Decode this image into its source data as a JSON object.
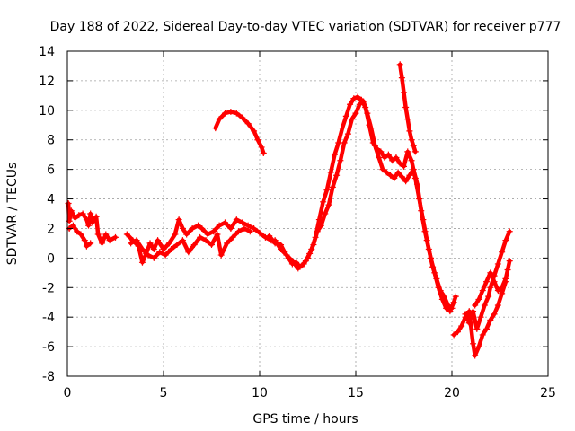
{
  "chart_data": {
    "type": "scatter",
    "title": "Day 188 of 2022, Sidereal Day-to-day VTEC variation (SDTVAR) for receiver p777",
    "xlabel": "GPS time / hours",
    "ylabel": "SDTVAR / TECUs",
    "xlim": [
      0,
      25
    ],
    "ylim": [
      -8,
      14
    ],
    "xticks": [
      0,
      5,
      10,
      15,
      20,
      25
    ],
    "yticks": [
      -8,
      -6,
      -4,
      -2,
      0,
      2,
      4,
      6,
      8,
      10,
      12,
      14
    ],
    "grid": true,
    "color": "#ff0000",
    "marker": "plus",
    "series": [
      {
        "name": "sdtvar-main-a",
        "points": [
          [
            0.05,
            3.7
          ],
          [
            0.1,
            2.5
          ],
          [
            0.2,
            3.2
          ],
          [
            0.4,
            2.7
          ],
          [
            0.6,
            2.9
          ],
          [
            0.8,
            3.0
          ],
          [
            1.0,
            2.6
          ],
          [
            1.1,
            2.2
          ],
          [
            1.2,
            3.0
          ],
          [
            1.3,
            2.4
          ],
          [
            1.5,
            2.8
          ],
          [
            1.6,
            1.6
          ],
          [
            1.8,
            1.0
          ],
          [
            2.0,
            1.6
          ],
          [
            2.2,
            1.2
          ],
          [
            2.5,
            1.4
          ]
        ]
      },
      {
        "name": "sdtvar-main-b",
        "points": [
          [
            0.1,
            2.0
          ],
          [
            0.3,
            2.2
          ],
          [
            0.5,
            1.8
          ],
          [
            0.7,
            1.6
          ],
          [
            0.9,
            1.2
          ],
          [
            1.0,
            0.8
          ],
          [
            1.2,
            1.0
          ]
        ]
      },
      {
        "name": "sdtvar-main-c",
        "points": [
          [
            3.1,
            1.6
          ],
          [
            3.4,
            1.2
          ],
          [
            3.7,
            0.8
          ],
          [
            3.9,
            -0.3
          ],
          [
            4.1,
            0.3
          ],
          [
            4.3,
            1.0
          ],
          [
            4.5,
            0.6
          ],
          [
            4.7,
            1.2
          ],
          [
            5.0,
            0.6
          ],
          [
            5.3,
            1.0
          ],
          [
            5.6,
            1.6
          ],
          [
            5.8,
            2.6
          ],
          [
            6.0,
            2.0
          ],
          [
            6.2,
            1.6
          ],
          [
            6.5,
            2.0
          ],
          [
            6.8,
            2.2
          ],
          [
            7.0,
            2.0
          ],
          [
            7.3,
            1.6
          ],
          [
            7.6,
            1.8
          ],
          [
            7.9,
            2.2
          ],
          [
            8.2,
            2.4
          ],
          [
            8.5,
            2.0
          ],
          [
            8.8,
            2.6
          ],
          [
            9.1,
            2.4
          ],
          [
            9.4,
            2.2
          ],
          [
            9.7,
            2.0
          ],
          [
            10.0,
            1.7
          ],
          [
            10.3,
            1.4
          ],
          [
            10.6,
            1.2
          ]
        ]
      },
      {
        "name": "sdtvar-main-d",
        "points": [
          [
            3.3,
            1.0
          ],
          [
            3.6,
            1.2
          ],
          [
            3.9,
            0.6
          ],
          [
            4.2,
            0.2
          ],
          [
            4.5,
            0.0
          ],
          [
            4.8,
            0.4
          ],
          [
            5.1,
            0.2
          ],
          [
            5.4,
            0.6
          ],
          [
            5.7,
            0.9
          ],
          [
            6.0,
            1.2
          ],
          [
            6.3,
            0.4
          ],
          [
            6.6,
            0.9
          ],
          [
            6.9,
            1.4
          ],
          [
            7.2,
            1.2
          ],
          [
            7.5,
            0.9
          ],
          [
            7.8,
            1.6
          ],
          [
            8.0,
            0.2
          ],
          [
            8.3,
            1.0
          ],
          [
            8.6,
            1.4
          ],
          [
            8.9,
            1.8
          ],
          [
            9.2,
            2.0
          ],
          [
            9.5,
            1.8
          ]
        ]
      },
      {
        "name": "sdtvar-arc",
        "points": [
          [
            7.7,
            8.8
          ],
          [
            7.9,
            9.4
          ],
          [
            8.2,
            9.8
          ],
          [
            8.5,
            9.9
          ],
          [
            8.8,
            9.8
          ],
          [
            9.1,
            9.5
          ],
          [
            9.4,
            9.1
          ],
          [
            9.7,
            8.6
          ],
          [
            9.9,
            8.0
          ],
          [
            10.1,
            7.5
          ],
          [
            10.2,
            7.1
          ]
        ]
      },
      {
        "name": "sdtvar-main-e",
        "points": [
          [
            10.5,
            1.5
          ],
          [
            10.8,
            1.0
          ],
          [
            11.1,
            0.9
          ],
          [
            11.3,
            0.4
          ],
          [
            11.5,
            0.0
          ],
          [
            11.7,
            -0.4
          ],
          [
            11.9,
            -0.3
          ],
          [
            12.1,
            -0.6
          ],
          [
            12.3,
            -0.4
          ],
          [
            12.5,
            0.0
          ],
          [
            12.7,
            0.6
          ],
          [
            12.9,
            1.4
          ],
          [
            13.1,
            2.6
          ],
          [
            13.3,
            3.8
          ],
          [
            13.5,
            4.6
          ],
          [
            13.7,
            5.8
          ],
          [
            13.9,
            7.0
          ],
          [
            14.1,
            7.8
          ],
          [
            14.3,
            8.8
          ],
          [
            14.5,
            9.6
          ],
          [
            14.7,
            10.4
          ],
          [
            14.9,
            10.8
          ],
          [
            15.1,
            10.9
          ],
          [
            15.3,
            10.7
          ],
          [
            15.5,
            10.2
          ],
          [
            15.7,
            9.0
          ],
          [
            15.9,
            7.8
          ],
          [
            16.1,
            7.4
          ],
          [
            16.3,
            7.2
          ],
          [
            16.5,
            6.8
          ],
          [
            16.7,
            7.0
          ],
          [
            16.9,
            6.6
          ],
          [
            17.1,
            6.8
          ],
          [
            17.3,
            6.4
          ],
          [
            17.5,
            6.2
          ],
          [
            17.7,
            7.2
          ],
          [
            17.9,
            6.6
          ],
          [
            18.1,
            5.4
          ],
          [
            18.3,
            4.0
          ],
          [
            18.5,
            2.6
          ],
          [
            18.7,
            1.2
          ],
          [
            18.9,
            0.0
          ],
          [
            19.1,
            -1.0
          ],
          [
            19.3,
            -2.0
          ],
          [
            19.5,
            -2.8
          ],
          [
            19.7,
            -3.4
          ],
          [
            19.9,
            -3.6
          ],
          [
            20.1,
            -3.0
          ],
          [
            20.2,
            -2.6
          ]
        ]
      },
      {
        "name": "sdtvar-main-f",
        "points": [
          [
            10.8,
            1.2
          ],
          [
            11.1,
            0.6
          ],
          [
            11.4,
            0.2
          ],
          [
            11.7,
            -0.2
          ],
          [
            12.0,
            -0.7
          ],
          [
            12.2,
            -0.5
          ],
          [
            12.4,
            -0.2
          ],
          [
            12.6,
            0.3
          ],
          [
            12.8,
            0.9
          ],
          [
            13.0,
            1.8
          ],
          [
            13.2,
            2.2
          ],
          [
            13.4,
            3.0
          ],
          [
            13.6,
            3.6
          ],
          [
            13.8,
            4.8
          ],
          [
            14.0,
            5.6
          ],
          [
            14.2,
            6.6
          ],
          [
            14.4,
            7.8
          ],
          [
            14.6,
            8.4
          ],
          [
            14.8,
            9.4
          ],
          [
            15.0,
            9.8
          ],
          [
            15.2,
            10.4
          ],
          [
            15.4,
            10.6
          ],
          [
            15.6,
            9.8
          ],
          [
            15.8,
            8.8
          ],
          [
            16.0,
            7.6
          ],
          [
            16.2,
            6.8
          ],
          [
            16.4,
            6.0
          ],
          [
            16.6,
            5.8
          ],
          [
            16.8,
            5.6
          ],
          [
            17.0,
            5.4
          ],
          [
            17.2,
            5.8
          ],
          [
            17.4,
            5.5
          ],
          [
            17.6,
            5.2
          ],
          [
            17.8,
            5.6
          ],
          [
            18.0,
            6.0
          ],
          [
            18.2,
            5.0
          ],
          [
            18.4,
            3.2
          ],
          [
            18.6,
            1.8
          ],
          [
            18.8,
            0.6
          ],
          [
            19.0,
            -0.6
          ],
          [
            19.2,
            -1.4
          ],
          [
            19.4,
            -2.2
          ],
          [
            19.6,
            -2.6
          ],
          [
            19.8,
            -3.2
          ],
          [
            20.0,
            -3.4
          ]
        ]
      },
      {
        "name": "sdtvar-spike",
        "points": [
          [
            17.3,
            13.1
          ],
          [
            17.4,
            12.2
          ],
          [
            17.5,
            11.2
          ],
          [
            17.6,
            10.2
          ],
          [
            17.7,
            9.4
          ],
          [
            17.8,
            8.6
          ],
          [
            17.9,
            8.0
          ],
          [
            18.0,
            7.6
          ],
          [
            18.1,
            7.2
          ]
        ]
      },
      {
        "name": "sdtvar-tail-a",
        "points": [
          [
            20.1,
            -5.2
          ],
          [
            20.3,
            -5.0
          ],
          [
            20.5,
            -4.6
          ],
          [
            20.7,
            -4.0
          ],
          [
            20.9,
            -3.6
          ],
          [
            21.1,
            -5.8
          ],
          [
            21.2,
            -6.6
          ],
          [
            21.4,
            -6.0
          ],
          [
            21.6,
            -5.2
          ],
          [
            21.8,
            -4.8
          ],
          [
            22.0,
            -4.2
          ],
          [
            22.2,
            -3.8
          ],
          [
            22.4,
            -3.2
          ],
          [
            22.6,
            -2.4
          ],
          [
            22.8,
            -1.6
          ]
        ]
      },
      {
        "name": "sdtvar-tail-b",
        "points": [
          [
            20.7,
            -3.8
          ],
          [
            20.9,
            -4.4
          ],
          [
            21.1,
            -3.6
          ],
          [
            21.3,
            -4.8
          ],
          [
            21.5,
            -4.0
          ],
          [
            21.7,
            -3.2
          ],
          [
            21.9,
            -2.6
          ],
          [
            22.0,
            -2.0
          ],
          [
            22.2,
            -1.2
          ],
          [
            22.4,
            -0.4
          ],
          [
            22.6,
            0.4
          ],
          [
            22.8,
            1.2
          ],
          [
            23.0,
            1.8
          ]
        ]
      },
      {
        "name": "sdtvar-tail-c",
        "points": [
          [
            21.2,
            -3.2
          ],
          [
            21.4,
            -2.8
          ],
          [
            21.6,
            -2.2
          ],
          [
            21.8,
            -1.6
          ],
          [
            22.0,
            -1.0
          ],
          [
            22.2,
            -1.6
          ],
          [
            22.4,
            -2.2
          ],
          [
            22.6,
            -2.0
          ],
          [
            22.8,
            -1.4
          ],
          [
            22.9,
            -0.8
          ],
          [
            23.0,
            -0.2
          ]
        ]
      }
    ]
  }
}
